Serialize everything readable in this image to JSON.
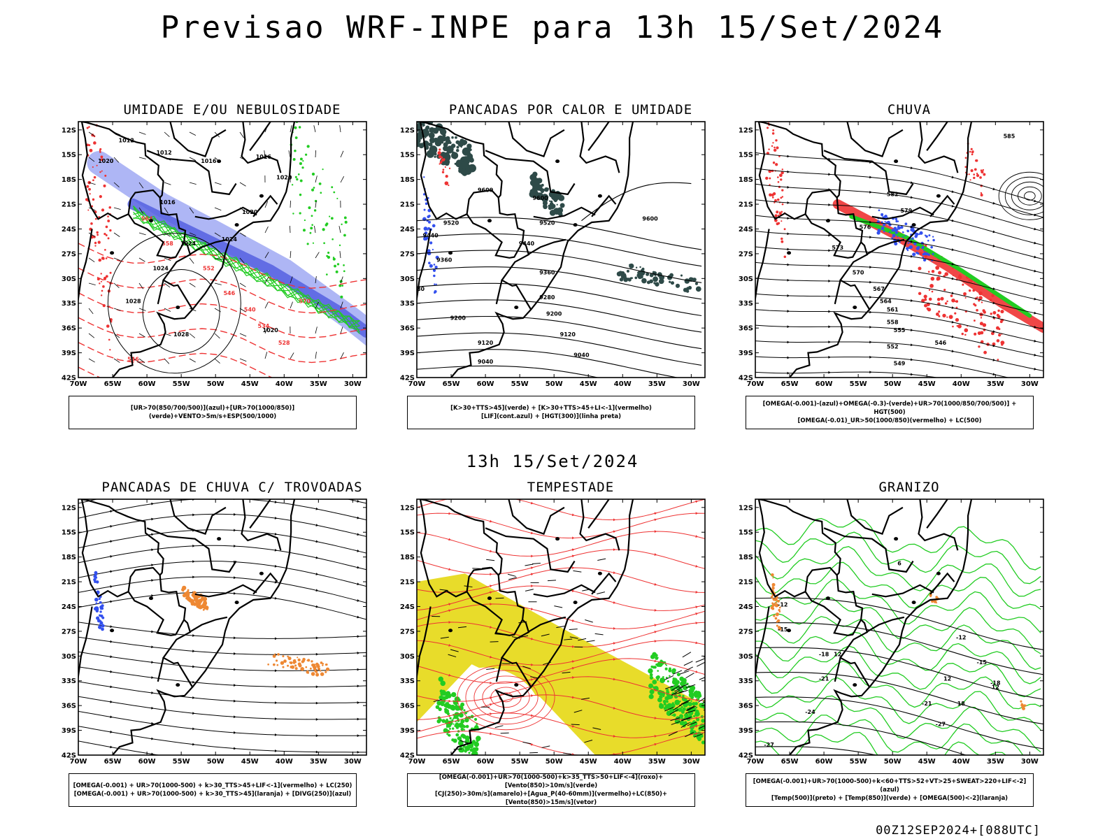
{
  "title": "Previsao WRF-INPE  para 13h 15/Set/2024",
  "mid_title": "13h 15/Set/2024",
  "footer": "00Z12SEP2024+[088UTC]",
  "lat_labels": [
    "12S",
    "15S",
    "18S",
    "21S",
    "24S",
    "27S",
    "30S",
    "33S",
    "36S",
    "39S",
    "42S"
  ],
  "lon_labels": [
    "70W",
    "65W",
    "60W",
    "55W",
    "50W",
    "45W",
    "40W",
    "35W",
    "30W"
  ],
  "colors": {
    "blue": "#3350ee",
    "light_blue": "#9aa4f2",
    "green": "#22cc22",
    "red": "#ee3333",
    "orange": "#ee8833",
    "yellow": "#e8dc2a",
    "dark_teal": "#2e4a48",
    "purple": "#9a9ae8"
  },
  "panels": [
    {
      "id": "umidade",
      "title": "UMIDADE E/OU NEBULOSIDADE",
      "legend": [
        "[UR>70(850/700/500)](azul)+[UR>70(1000/850)](verde)+VENTO>5m/s+ESP(500/1000)"
      ],
      "contour_labels": [
        "1012",
        "1012",
        "1016",
        "1016",
        "1020",
        "1020",
        "1016",
        "1020",
        "1024",
        "1024",
        "1024",
        "1028",
        "1028",
        "1020",
        "570",
        "564",
        "558",
        "552",
        "546",
        "540",
        "534",
        "528",
        "546"
      ]
    },
    {
      "id": "pancadas-calor",
      "title": "PANCADAS POR CALOR E UMIDADE",
      "legend": [
        "[K>30+TTS>45](verde) + [K>30+TTS>45+LI<-1](vermelho)",
        "[LIF](cont.azul) + [HGT(300)](linha preta)"
      ],
      "contour_labels": [
        "9600",
        "9600",
        "9520",
        "9520",
        "9440",
        "9440",
        "9360",
        "9360",
        "9280",
        "9280",
        "9200",
        "9200",
        "9120",
        "9120",
        "9040",
        "9040",
        "9600"
      ]
    },
    {
      "id": "chuva",
      "title": "CHUVA",
      "legend": [
        "[OMEGA(-0.001)-(azul)+OMEGA(-0.3)-(verde)+UR>70(1000/850/700/500)] + HGT(500)",
        "[OMEGA(-0.01)_UR>50(1000/850)(vermelho) + LC(500)"
      ],
      "contour_labels": [
        "585",
        "582",
        "579",
        "576",
        "573",
        "570",
        "567",
        "564",
        "561",
        "558",
        "555",
        "552",
        "549",
        "546"
      ]
    },
    {
      "id": "trovoadas",
      "title": "PANCADAS DE CHUVA C/ TROVOADAS",
      "legend": [
        "[OMEGA(-0.001) + UR>70(1000-500) + k>30_TTS>45+LIF<-1](vermelho) + LC(250)",
        "[OMEGA(-0.001) + UR>70(1000-500) + k>30_TTS>45](laranja) + [DIVG(250)](azul)"
      ],
      "contour_labels": []
    },
    {
      "id": "tempestade",
      "title": "TEMPESTADE",
      "legend": [
        "[OMEGA(-0.001)+UR>70(1000-500)+k>35_TTS>50+LIF<-4](roxo)+[Vento(850)>10m/s](verde)",
        "[CJ(250)>30m/s](amarelo)+[Agua_P(40-60mm)](vermelho)+LC(850)+[Vento(850)>15m/s](vetor)"
      ],
      "contour_labels": []
    },
    {
      "id": "granizo",
      "title": "GRANIZO",
      "legend": [
        "[OMEGA(-0.001)+UR>70(1000-500)+k<60+TTS>52+VT>25+SWEAT>220+LIF<-2](azul)",
        "[Temp(500)](preto) + [Temp(850)](verde) + [OMEGA(500)<-2](laranja)"
      ],
      "contour_labels": [
        "-12",
        "-15",
        "-18",
        "-21",
        "-24",
        "-27",
        "-12",
        "-15",
        "-18",
        "-21",
        "-27",
        "6",
        "12",
        "12",
        "12",
        "18"
      ]
    }
  ]
}
